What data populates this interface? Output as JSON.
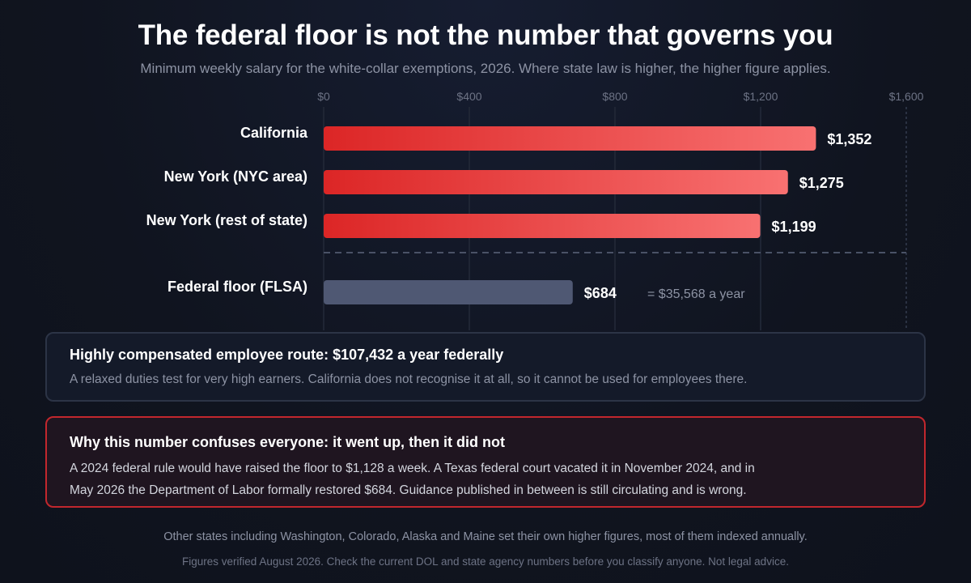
{
  "title": "The federal floor is not the number that governs you",
  "subtitle": "Minimum weekly salary for the white-collar exemptions, 2026. Where state law is higher, the higher figure applies.",
  "chart_data": {
    "type": "bar",
    "orientation": "horizontal",
    "xlim": [
      0,
      1600
    ],
    "ticks": [
      0,
      400,
      800,
      1200,
      1600
    ],
    "tick_labels": [
      "$0",
      "$400",
      "$800",
      "$1,200",
      "$1,600"
    ],
    "grid": true,
    "categories": [
      "California",
      "New York (NYC area)",
      "New York (rest of state)",
      "Federal floor (FLSA)"
    ],
    "values": [
      1352,
      1275,
      1199,
      684
    ],
    "value_labels": [
      "$1,352",
      "$1,275",
      "$1,199",
      "$684"
    ],
    "annotation": "= $35,568 a year",
    "colors": {
      "state_bar_start": "#dc2626",
      "state_bar_end": "#f87171",
      "federal_bar": "#4f5873"
    }
  },
  "cards": {
    "hce": {
      "title": "Highly compensated employee route: $107,432 a year federally",
      "body": "A relaxed duties test for very high earners. California does not recognise it at all, so it cannot be used for employees there."
    },
    "warning": {
      "title": "Why this number confuses everyone: it went up, then it did not",
      "body_line1": "A 2024 federal rule would have raised the floor to $1,128 a week. A Texas federal court vacated it in November 2024, and in",
      "body_line2": "May 2026 the Department of Labor formally restored $684. Guidance published in between is still circulating and is wrong."
    }
  },
  "footer": {
    "line1": "Other states including Washington, Colorado, Alaska and Maine set their own higher figures, most of them indexed annually.",
    "line2": "Figures verified August 2026. Check the current DOL and state agency numbers before you classify anyone. Not legal advice."
  }
}
